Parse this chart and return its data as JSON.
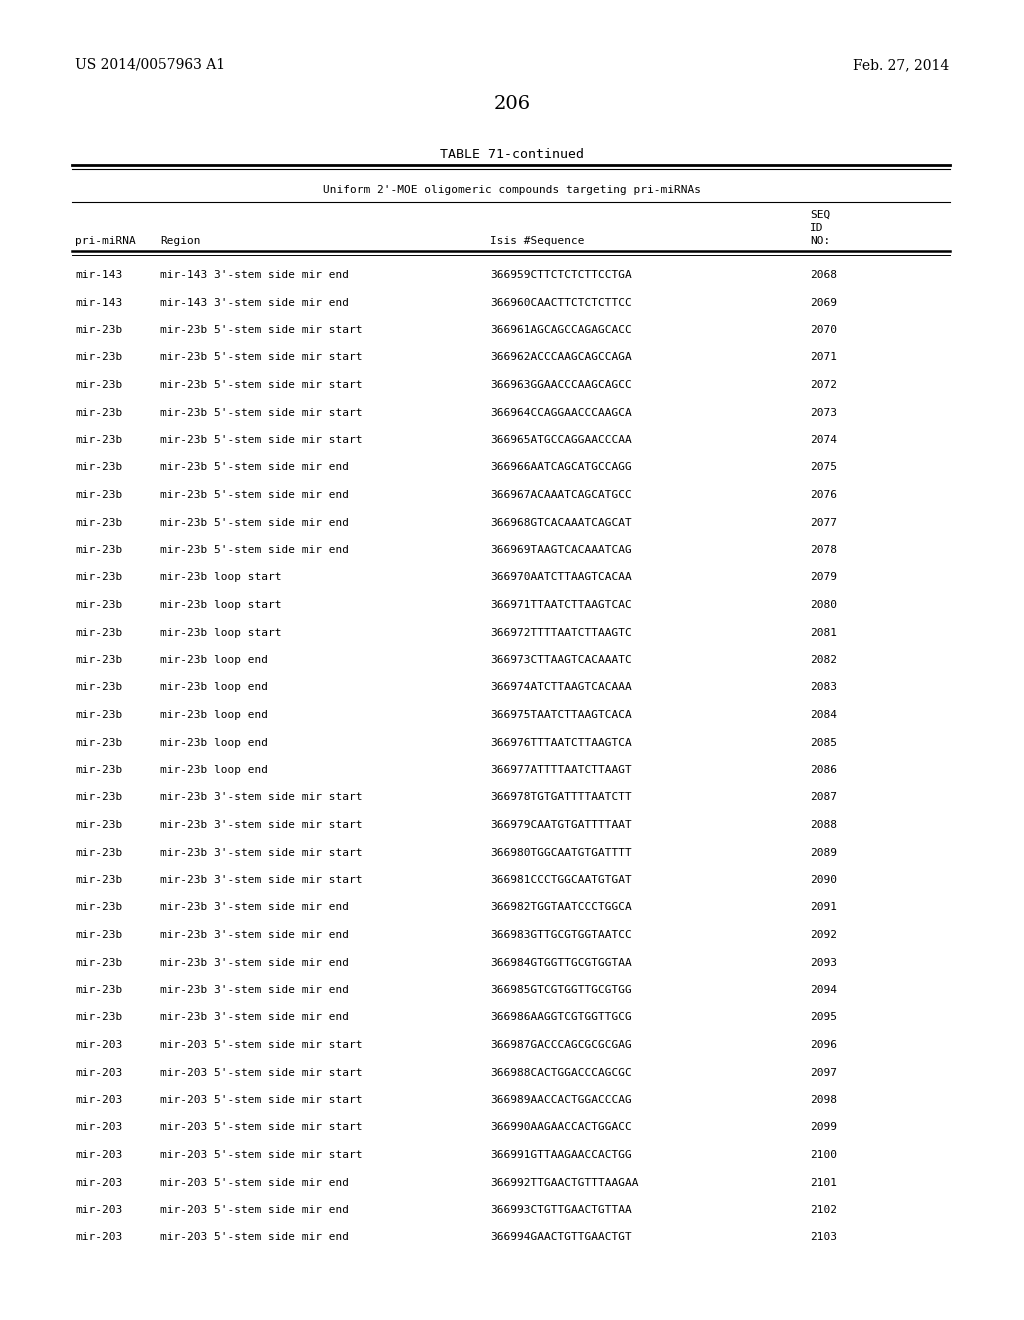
{
  "header_left": "US 2014/0057963 A1",
  "header_right": "Feb. 27, 2014",
  "page_number": "206",
  "table_title": "TABLE 71-continued",
  "table_subtitle": "Uniform 2'-MOE oligomeric compounds targeting pri-miRNAs",
  "rows": [
    [
      "mir-143",
      "mir-143 3'-stem side mir end",
      "366959",
      "CTTCTCTCTTCCTGA",
      "2068"
    ],
    [
      "mir-143",
      "mir-143 3'-stem side mir end",
      "366960",
      "CAACTTCTCTCTTCC",
      "2069"
    ],
    [
      "mir-23b",
      "mir-23b 5'-stem side mir start",
      "366961",
      "AGCAGCCAGAGCACC",
      "2070"
    ],
    [
      "mir-23b",
      "mir-23b 5'-stem side mir start",
      "366962",
      "ACCCAAGCAGCCAGA",
      "2071"
    ],
    [
      "mir-23b",
      "mir-23b 5'-stem side mir start",
      "366963",
      "GGAACCCAAGCAGCC",
      "2072"
    ],
    [
      "mir-23b",
      "mir-23b 5'-stem side mir start",
      "366964",
      "CCAGGAACCCAAGCA",
      "2073"
    ],
    [
      "mir-23b",
      "mir-23b 5'-stem side mir start",
      "366965",
      "ATGCCAGGAACCCAA",
      "2074"
    ],
    [
      "mir-23b",
      "mir-23b 5'-stem side mir end",
      "366966",
      "AATCAGCATGCCAGG",
      "2075"
    ],
    [
      "mir-23b",
      "mir-23b 5'-stem side mir end",
      "366967",
      "ACAAATCAGCATGCC",
      "2076"
    ],
    [
      "mir-23b",
      "mir-23b 5'-stem side mir end",
      "366968",
      "GTCACAAATCAGCAT",
      "2077"
    ],
    [
      "mir-23b",
      "mir-23b 5'-stem side mir end",
      "366969",
      "TAAGTCACAAATCAG",
      "2078"
    ],
    [
      "mir-23b",
      "mir-23b loop start",
      "366970",
      "AATCTTAAGTCACAA",
      "2079"
    ],
    [
      "mir-23b",
      "mir-23b loop start",
      "366971",
      "TTAATCTTAAGTCAC",
      "2080"
    ],
    [
      "mir-23b",
      "mir-23b loop start",
      "366972",
      "TTTTAATCTTAAGTC",
      "2081"
    ],
    [
      "mir-23b",
      "mir-23b loop end",
      "366973",
      "CTTAAGTCACAAATC",
      "2082"
    ],
    [
      "mir-23b",
      "mir-23b loop end",
      "366974",
      "ATCTTAAGTCACAAA",
      "2083"
    ],
    [
      "mir-23b",
      "mir-23b loop end",
      "366975",
      "TAATCTTAAGTCACA",
      "2084"
    ],
    [
      "mir-23b",
      "mir-23b loop end",
      "366976",
      "TTTAATCTTAAGTCA",
      "2085"
    ],
    [
      "mir-23b",
      "mir-23b loop end",
      "366977",
      "ATTTTAATCTTAAGT",
      "2086"
    ],
    [
      "mir-23b",
      "mir-23b 3'-stem side mir start",
      "366978",
      "TGTGATTTTAATCTT",
      "2087"
    ],
    [
      "mir-23b",
      "mir-23b 3'-stem side mir start",
      "366979",
      "CAATGTGATTTTAAT",
      "2088"
    ],
    [
      "mir-23b",
      "mir-23b 3'-stem side mir start",
      "366980",
      "TGGCAATGTGATTTT",
      "2089"
    ],
    [
      "mir-23b",
      "mir-23b 3'-stem side mir start",
      "366981",
      "CCCTGGCAATGTGAT",
      "2090"
    ],
    [
      "mir-23b",
      "mir-23b 3'-stem side mir end",
      "366982",
      "TGGTAATCCCTGGCA",
      "2091"
    ],
    [
      "mir-23b",
      "mir-23b 3'-stem side mir end",
      "366983",
      "GTTGCGTGGTAATCC",
      "2092"
    ],
    [
      "mir-23b",
      "mir-23b 3'-stem side mir end",
      "366984",
      "GTGGTTGCGTGGTAA",
      "2093"
    ],
    [
      "mir-23b",
      "mir-23b 3'-stem side mir end",
      "366985",
      "GTCGTGGTTGCGTGG",
      "2094"
    ],
    [
      "mir-23b",
      "mir-23b 3'-stem side mir end",
      "366986",
      "AAGGTCGTGGTTGCG",
      "2095"
    ],
    [
      "mir-203",
      "mir-203 5'-stem side mir start",
      "366987",
      "GACCCAGCGCGCGAG",
      "2096"
    ],
    [
      "mir-203",
      "mir-203 5'-stem side mir start",
      "366988",
      "CACTGGACCCAGCGC",
      "2097"
    ],
    [
      "mir-203",
      "mir-203 5'-stem side mir start",
      "366989",
      "AACCACTGGACCCAG",
      "2098"
    ],
    [
      "mir-203",
      "mir-203 5'-stem side mir start",
      "366990",
      "AAGAACCACTGGACC",
      "2099"
    ],
    [
      "mir-203",
      "mir-203 5'-stem side mir start",
      "366991",
      "GTTAAGAACCACTGG",
      "2100"
    ],
    [
      "mir-203",
      "mir-203 5'-stem side mir end",
      "366992",
      "TTGAACTGTTTAAGAA",
      "2101"
    ],
    [
      "mir-203",
      "mir-203 5'-stem side mir end",
      "366993",
      "CTGTTGAACTGTTAA",
      "2102"
    ],
    [
      "mir-203",
      "mir-203 5'-stem side mir end",
      "366994",
      "GAACTGTTGAACTGT",
      "2103"
    ]
  ],
  "bg_color": "#ffffff",
  "text_color": "#000000",
  "data_font_size": 8.0,
  "header_font_size": 10.0,
  "title_font_size": 9.5,
  "page_num_font_size": 14,
  "mono_font": "DejaVu Sans Mono",
  "serif_font": "DejaVu Serif",
  "fig_width": 10.24,
  "fig_height": 13.2,
  "dpi": 100
}
